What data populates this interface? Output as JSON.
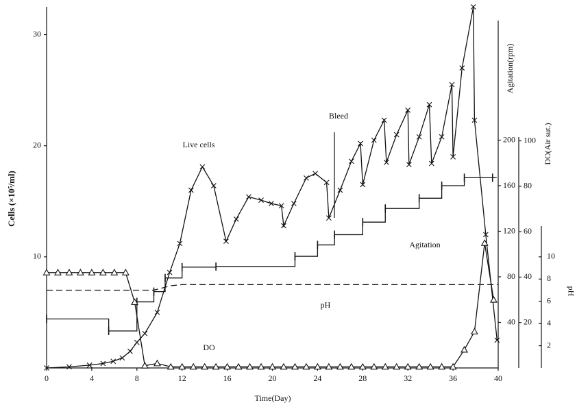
{
  "chart_data": {
    "type": "line",
    "xlabel": "Time(Day)",
    "ylabel": "Cells (×10⁵/ml)",
    "y2label": "Agitation(rpm)",
    "y3label": "DO(Air sut.)",
    "y4label": "pH",
    "annotation": "Bleed",
    "xlim": [
      0,
      40
    ],
    "xticks": [
      0,
      4,
      8,
      12,
      16,
      20,
      24,
      28,
      32,
      36,
      40
    ],
    "ylim": [
      0,
      32.5
    ],
    "yticks": [
      10,
      20,
      30
    ],
    "y2lim": [
      0,
      317
    ],
    "y2ticks": [
      40,
      80,
      120,
      160,
      200
    ],
    "y3lim": [
      0,
      159
    ],
    "y3ticks": [
      20,
      40,
      60,
      80,
      100
    ],
    "y4lim": [
      0,
      32.5
    ],
    "y4ticks": [
      2,
      4,
      6,
      8,
      10
    ],
    "series": [
      {
        "name": "Live cells",
        "axis": "y",
        "marker": "x",
        "color": "#111",
        "x": [
          0,
          2,
          3.8,
          5,
          5.9,
          6.7,
          7.4,
          8,
          8.7,
          9.8,
          10.9,
          11.8,
          12.8,
          13.8,
          14.8,
          15.9,
          16.8,
          17.9,
          19,
          19.9,
          20.8,
          21,
          21.9,
          23,
          23.8,
          24.8,
          25,
          26,
          27,
          27.8,
          28,
          29,
          29.9,
          30.1,
          31,
          32,
          32.1,
          33,
          33.9,
          34.1,
          35,
          35.9,
          36,
          36.8,
          37.8,
          37.9,
          38.9,
          39.9
        ],
        "values": [
          0,
          0.1,
          0.25,
          0.4,
          0.6,
          0.9,
          1.5,
          2.3,
          3.1,
          5,
          8.6,
          11.2,
          16,
          18.1,
          16.4,
          11.4,
          13.4,
          15.4,
          15.1,
          14.8,
          14.6,
          12.8,
          14.8,
          17.1,
          17.5,
          16.7,
          13.5,
          16,
          18.6,
          20.2,
          16.5,
          20.5,
          22.3,
          18.5,
          21,
          23.2,
          18.3,
          20.8,
          23.7,
          18.4,
          20.8,
          25.5,
          19,
          27,
          32.5,
          22.3,
          12,
          2.5
        ]
      },
      {
        "name": "Agitation",
        "axis": "y2",
        "marker": "+",
        "step": true,
        "color": "#111",
        "x": [
          0,
          5.5,
          8,
          9.5,
          10.5,
          12,
          15,
          22,
          24,
          25.5,
          28,
          30,
          33,
          35,
          37,
          39.5
        ],
        "values": [
          43,
          32.5,
          58,
          67,
          79,
          88.5,
          89,
          98,
          108,
          117,
          128,
          140,
          149,
          160,
          167,
          167
        ]
      },
      {
        "name": "DO",
        "axis": "y3",
        "marker": "triangle",
        "color": "#111",
        "x": [
          0,
          1,
          2,
          3,
          4,
          5,
          6,
          7,
          7.8,
          8.7,
          9.8,
          11,
          12,
          13,
          14,
          15,
          16,
          17,
          18,
          19,
          20,
          21,
          22,
          23,
          24,
          25,
          26,
          27,
          28,
          29,
          30,
          31,
          32,
          33,
          34,
          35,
          36,
          37,
          37.9,
          38.8,
          39.6
        ],
        "values": [
          42,
          42,
          42,
          42,
          42,
          42,
          42,
          42,
          29,
          1,
          2,
          0.5,
          0.5,
          0.5,
          0.5,
          0.5,
          0.5,
          0.5,
          0.5,
          0.5,
          0.5,
          0.5,
          0.5,
          0.5,
          0.5,
          0.5,
          0.5,
          0.5,
          0.5,
          0.5,
          0.5,
          0.5,
          0.5,
          0.5,
          0.5,
          0.5,
          0.5,
          8,
          16,
          55,
          30
        ]
      },
      {
        "name": "pH",
        "axis": "y4",
        "marker": "none",
        "dash": true,
        "color": "#111",
        "x": [
          0,
          8,
          9.5,
          11,
          12,
          38,
          40
        ],
        "values": [
          7.0,
          7.0,
          7.0,
          7.4,
          7.5,
          7.5,
          7.5
        ]
      }
    ]
  }
}
